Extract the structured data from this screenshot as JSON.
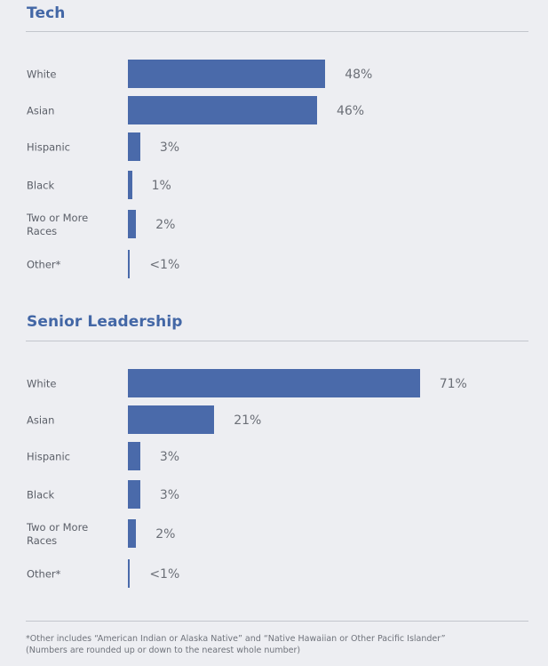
{
  "chart_data": [
    {
      "type": "bar",
      "orientation": "horizontal",
      "title": "Tech",
      "categories": [
        "White",
        "Asian",
        "Hispanic",
        "Black",
        "Two or More Races",
        "Other*"
      ],
      "values": [
        48,
        46,
        3,
        1,
        2,
        0.5
      ],
      "value_labels": [
        "48%",
        "46%",
        "3%",
        "1%",
        "2%",
        "<1%"
      ],
      "xlim": [
        0,
        100
      ],
      "grid": false,
      "color": "#4a6aaa"
    },
    {
      "type": "bar",
      "orientation": "horizontal",
      "title": "Senior Leadership",
      "categories": [
        "White",
        "Asian",
        "Hispanic",
        "Black",
        "Two or More Races",
        "Other*"
      ],
      "values": [
        71,
        21,
        3,
        3,
        2,
        0.5
      ],
      "value_labels": [
        "71%",
        "21%",
        "3%",
        "3%",
        "2%",
        "<1%"
      ],
      "xlim": [
        0,
        100
      ],
      "grid": false,
      "color": "#4a6aaa"
    }
  ],
  "footnote": {
    "line1": "*Other includes “American Indian or Alaska Native” and “Native Hawaiian or Other Pacific Islander”",
    "line2": "(Numbers are rounded up or down to the nearest whole number)"
  }
}
